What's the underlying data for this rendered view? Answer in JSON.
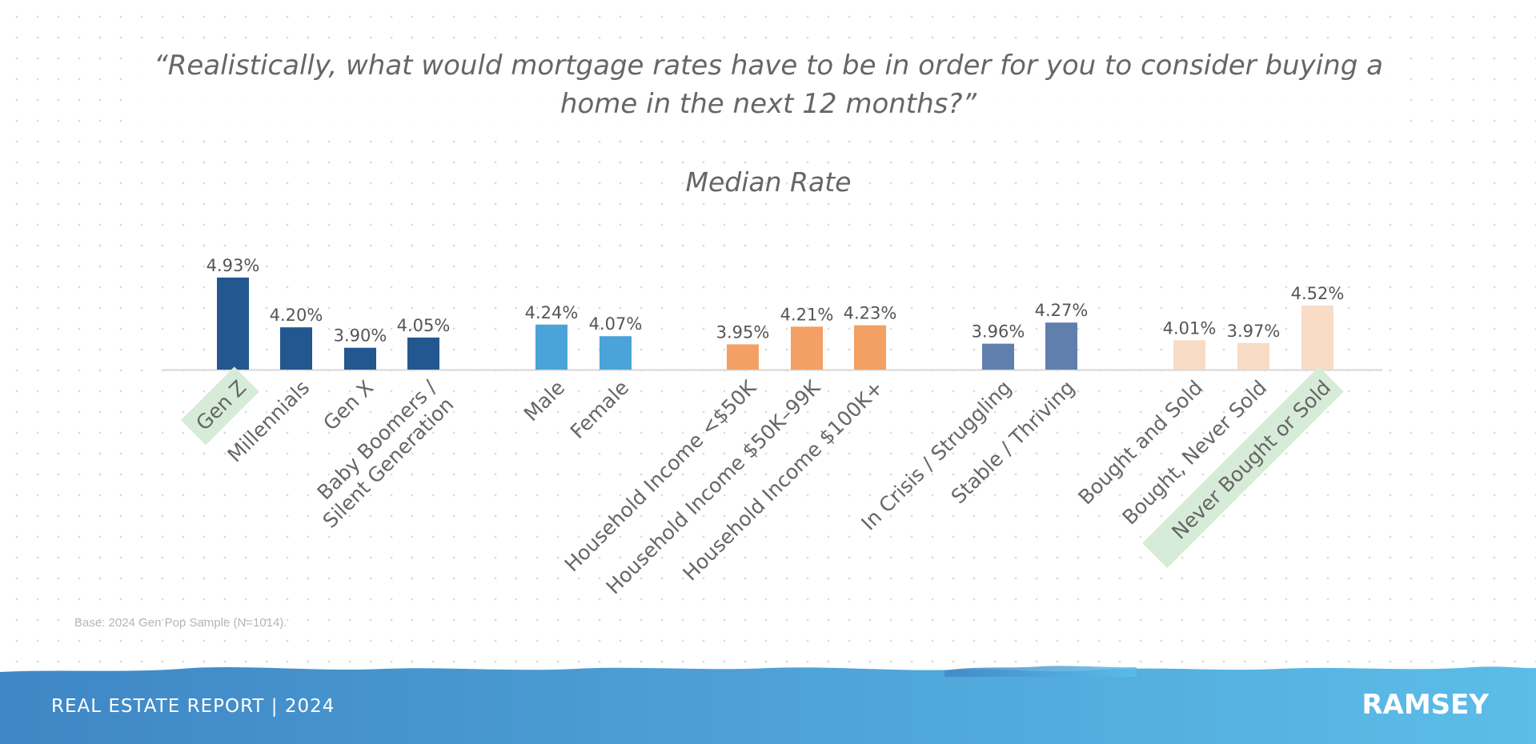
{
  "title": "“Realistically, what would mortgage rates have to be in order for you to consider buying a home in the next 12 months?”",
  "subtitle": "Median Rate",
  "base_note": "Base: 2024 Gen Pop Sample (N=1014).",
  "footer": {
    "report_label": "REAL ESTATE REPORT | 2024",
    "brand": "RAMSEY"
  },
  "colors": {
    "generation": "#23578f",
    "gender": "#4aa3d9",
    "income": "#f2a063",
    "wellbeing": "#617fad",
    "homeowner": "#f8dcc6",
    "highlight": "#d6ecd8",
    "label_text": "#666666",
    "value_text": "#555555",
    "baseline": "#d7d7d7",
    "footer_light": "#5cbde8",
    "footer_dark": "#3f86c5"
  },
  "chart_data": {
    "type": "bar",
    "unit": "%",
    "ylim": [
      0,
      5
    ],
    "categories": [
      "Gen Z",
      "Millennials",
      "Gen X",
      "Baby Boomers / Silent Generation",
      "Male",
      "Female",
      "Household Income <$50K",
      "Household Income $50K–99K",
      "Household Income $100K+",
      "In Crisis / Struggling",
      "Stable / Thriving",
      "Bought and Sold",
      "Bought, Never Sold",
      "Never Bought or Sold"
    ],
    "label_lines": [
      [
        "Gen Z"
      ],
      [
        "Millennials"
      ],
      [
        "Gen X"
      ],
      [
        "Baby Boomers /",
        "Silent Generation"
      ],
      [
        "Male"
      ],
      [
        "Female"
      ],
      [
        "Household Income <$50K"
      ],
      [
        "Household Income $50K–99K"
      ],
      [
        "Household Income $100K+"
      ],
      [
        "In Crisis / Struggling"
      ],
      [
        "Stable / Thriving"
      ],
      [
        "Bought and Sold"
      ],
      [
        "Bought, Never Sold"
      ],
      [
        "Never Bought or Sold"
      ]
    ],
    "values": [
      4.93,
      4.2,
      3.9,
      4.05,
      4.24,
      4.07,
      3.95,
      4.21,
      4.23,
      3.96,
      4.27,
      4.01,
      3.97,
      4.52
    ],
    "value_labels": [
      "4.93%",
      "4.20%",
      "3.90%",
      "4.05%",
      "4.24%",
      "4.07%",
      "3.95%",
      "4.21%",
      "4.23%",
      "3.96%",
      "4.27%",
      "4.01%",
      "3.97%",
      "4.52%"
    ],
    "groups": [
      "generation",
      "generation",
      "generation",
      "generation",
      "gender",
      "gender",
      "income",
      "income",
      "income",
      "wellbeing",
      "wellbeing",
      "homeowner",
      "homeowner",
      "homeowner"
    ],
    "highlighted": [
      "Gen Z",
      "Never Bought or Sold"
    ],
    "legend": "none",
    "grid": false
  }
}
